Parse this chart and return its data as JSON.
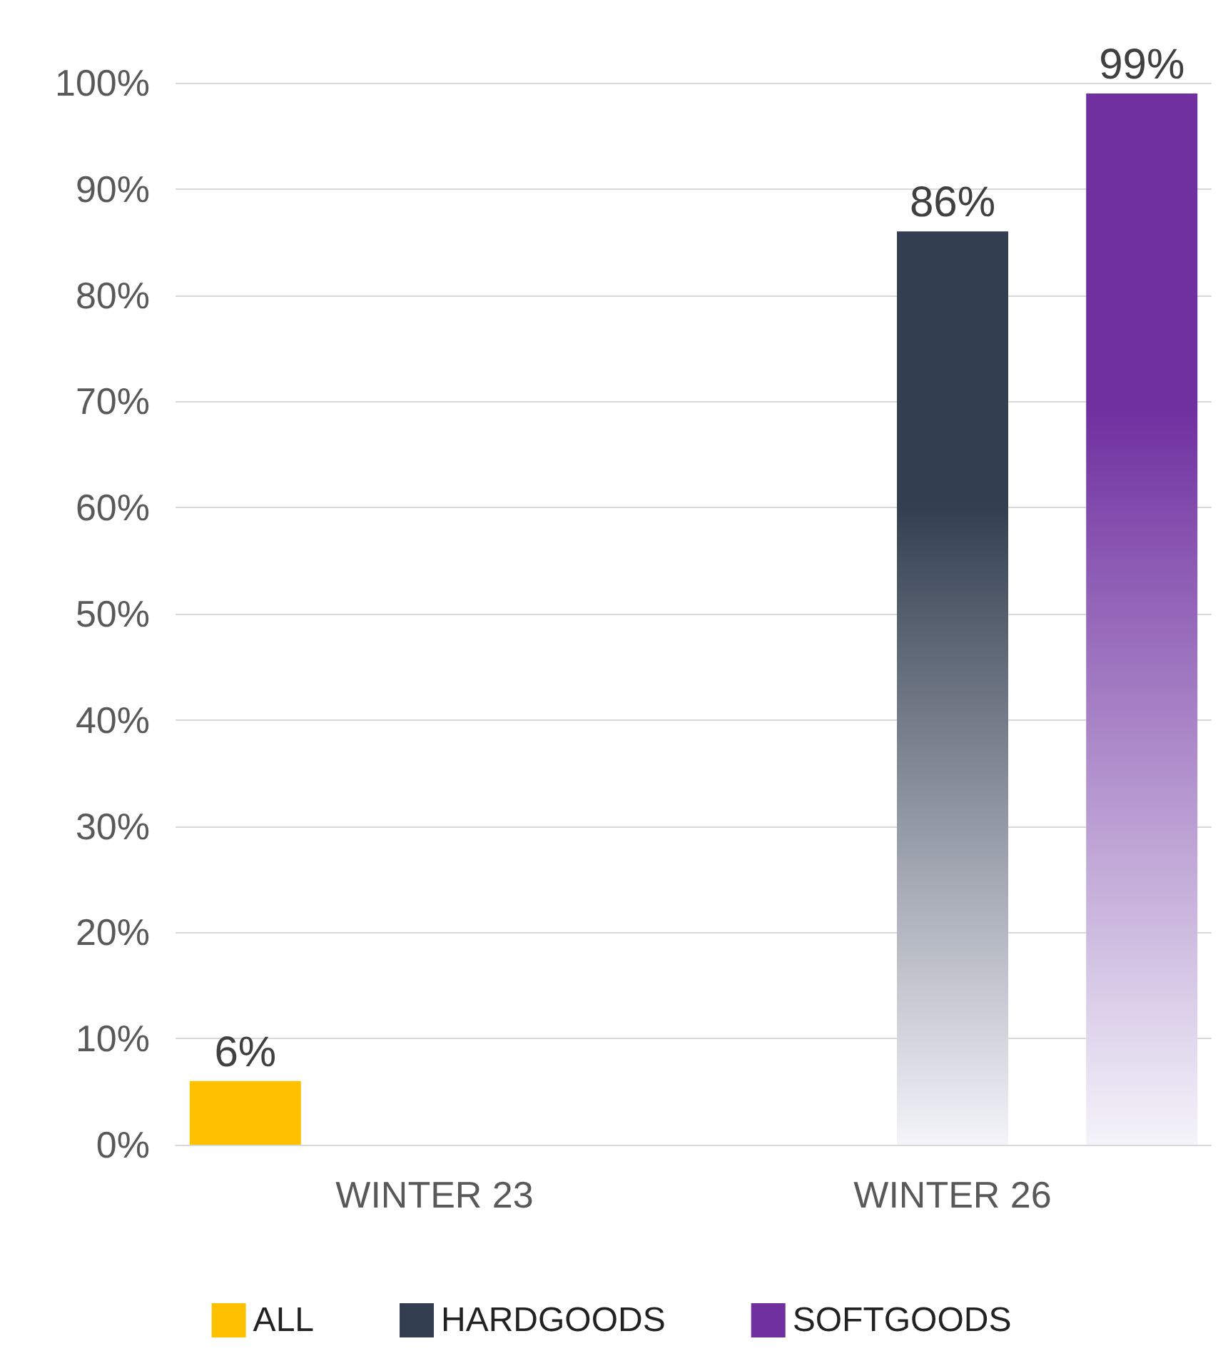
{
  "chart_data": {
    "type": "bar",
    "categories": [
      "WINTER 23",
      "WINTER 26"
    ],
    "series": [
      {
        "name": "ALL",
        "color": "#ffc000",
        "values": [
          6,
          null
        ],
        "value_labels": [
          "6%",
          null
        ]
      },
      {
        "name": "HARDGOODS",
        "color": "#333f50",
        "values": [
          null,
          86
        ],
        "value_labels": [
          null,
          "86%"
        ]
      },
      {
        "name": "SOFTGOODS",
        "color": "#7030a0",
        "values": [
          null,
          99
        ],
        "value_labels": [
          null,
          "99%"
        ]
      }
    ],
    "ylim": [
      0,
      100
    ],
    "yticks": [
      {
        "value": 0,
        "label": "0%"
      },
      {
        "value": 10,
        "label": "10%"
      },
      {
        "value": 20,
        "label": "20%"
      },
      {
        "value": 30,
        "label": "30%"
      },
      {
        "value": 40,
        "label": "40%"
      },
      {
        "value": 50,
        "label": "50%"
      },
      {
        "value": 60,
        "label": "60%"
      },
      {
        "value": 70,
        "label": "70%"
      },
      {
        "value": 80,
        "label": "80%"
      },
      {
        "value": 90,
        "label": "90%"
      },
      {
        "value": 100,
        "label": "100%"
      }
    ],
    "grid": "y",
    "legend": "bottom"
  }
}
